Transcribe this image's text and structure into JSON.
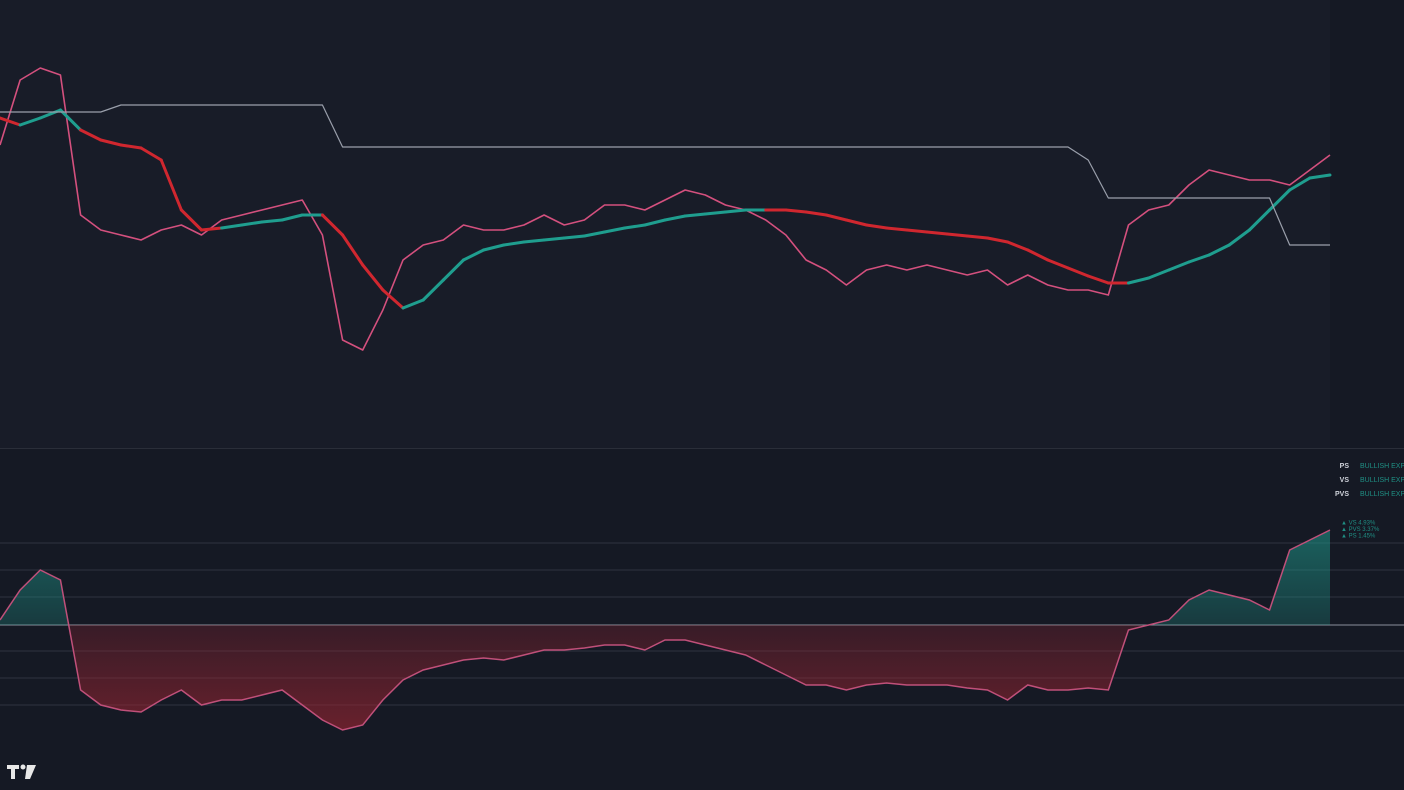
{
  "chart_data": [
    {
      "type": "line",
      "ylim": [
        0,
        448
      ],
      "series": [
        {
          "color": "#d4507e",
          "values": [
            303,
            368,
            380,
            373,
            233,
            218,
            213,
            208,
            218,
            223,
            213,
            228,
            233,
            238,
            243,
            248,
            213,
            108,
            98,
            138,
            188,
            203,
            208,
            223,
            218,
            218,
            223,
            233,
            223,
            228,
            243,
            243,
            238,
            248,
            258,
            253,
            243,
            238,
            228,
            213,
            188,
            178,
            163,
            178,
            183,
            178,
            183,
            178,
            173,
            178,
            163,
            173,
            163,
            158,
            158,
            153,
            223,
            238,
            243,
            263,
            278,
            273,
            268,
            268,
            263,
            278,
            293
          ]
        },
        {
          "color": "#d0272f",
          "up_color": "#1f9e8f",
          "values": [
            330,
            323,
            330,
            338,
            318,
            308,
            303,
            300,
            288,
            238,
            218,
            220,
            223,
            226,
            228,
            233,
            233,
            213,
            183,
            158,
            140,
            148,
            168,
            188,
            198,
            203,
            206,
            208,
            210,
            212,
            216,
            220,
            223,
            228,
            232,
            234,
            236,
            238,
            238,
            238,
            236,
            233,
            228,
            223,
            220,
            218,
            216,
            214,
            212,
            210,
            206,
            198,
            188,
            180,
            172,
            165,
            165,
            170,
            178,
            186,
            193,
            203,
            218,
            238,
            258,
            270,
            273
          ]
        },
        {
          "color": "#9a9fab",
          "values": [
            336,
            336,
            336,
            336,
            336,
            336,
            343,
            343,
            343,
            343,
            343,
            343,
            343,
            343,
            343,
            343,
            343,
            301,
            301,
            301,
            301,
            301,
            301,
            301,
            301,
            301,
            301,
            301,
            301,
            301,
            301,
            301,
            301,
            301,
            301,
            301,
            301,
            301,
            301,
            301,
            301,
            301,
            301,
            301,
            301,
            301,
            301,
            301,
            301,
            301,
            301,
            301,
            301,
            301,
            288,
            250,
            250,
            250,
            250,
            250,
            250,
            250,
            250,
            250,
            203,
            203,
            203
          ]
        }
      ]
    },
    {
      "type": "area",
      "ylim": [
        -165,
        176
      ],
      "levels": [
        82,
        55,
        28,
        0,
        -26,
        -53,
        -80
      ],
      "series": [
        {
          "color": "#c0507a",
          "up_color": "#1f9e8f",
          "down_color": "#a02532",
          "values": [
            5,
            35,
            55,
            45,
            -65,
            -80,
            -85,
            -87,
            -75,
            -65,
            -80,
            -75,
            -75,
            -70,
            -65,
            -80,
            -95,
            -105,
            -100,
            -75,
            -55,
            -45,
            -40,
            -35,
            -33,
            -35,
            -30,
            -25,
            -25,
            -23,
            -20,
            -20,
            -25,
            -15,
            -15,
            -20,
            -25,
            -30,
            -40,
            -50,
            -60,
            -60,
            -65,
            -60,
            -58,
            -60,
            -60,
            -60,
            -63,
            -65,
            -75,
            -60,
            -65,
            -65,
            -63,
            -65,
            -5,
            0,
            5,
            25,
            35,
            30,
            25,
            15,
            75,
            85,
            95
          ]
        }
      ]
    }
  ],
  "legend": {
    "rows": [
      [
        "PS",
        "BULLISH EXPAN"
      ],
      [
        "VS",
        "BULLISH EXPAN"
      ],
      [
        "PVS",
        "BULLISH EXPAN"
      ]
    ],
    "stats": [
      "▲ VS 4.93%",
      "▲ PVS 3.37%",
      "▲ PS 1.45%"
    ]
  }
}
